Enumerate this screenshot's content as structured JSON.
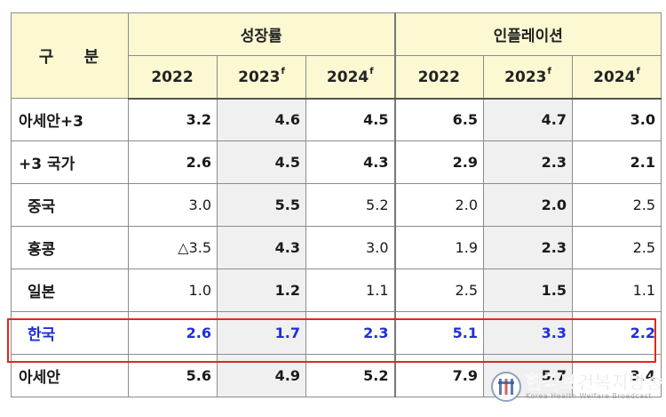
{
  "table": {
    "corner_label": "구 분",
    "groups": [
      "성장률",
      "인플레이션"
    ],
    "years": [
      {
        "year": "2022",
        "mark": ""
      },
      {
        "year": "2023",
        "mark": "f"
      },
      {
        "year": "2024",
        "mark": "f"
      },
      {
        "year": "2022",
        "mark": ""
      },
      {
        "year": "2023",
        "mark": "f"
      },
      {
        "year": "2024",
        "mark": "f"
      }
    ],
    "rows": [
      {
        "label": "아세안+3",
        "values": [
          "3.2",
          "4.6",
          "4.5",
          "6.5",
          "4.7",
          "3.0"
        ]
      },
      {
        "label": "+3 국가",
        "values": [
          "2.6",
          "4.5",
          "4.3",
          "2.9",
          "2.3",
          "2.1"
        ]
      },
      {
        "label": "중국",
        "values": [
          "3.0",
          "5.5",
          "5.2",
          "2.0",
          "2.0",
          "2.5"
        ]
      },
      {
        "label": "홍콩",
        "values": [
          "△3.5",
          "4.3",
          "3.0",
          "1.9",
          "2.3",
          "2.5"
        ]
      },
      {
        "label": "일본",
        "values": [
          "1.0",
          "1.2",
          "1.1",
          "2.5",
          "1.5",
          "1.1"
        ]
      },
      {
        "label": "한국",
        "values": [
          "2.6",
          "1.7",
          "2.3",
          "5.1",
          "3.3",
          "2.2"
        ]
      },
      {
        "label": "아세안",
        "values": [
          "5.6",
          "4.9",
          "5.2",
          "7.9",
          "5.7",
          "3.4"
        ]
      }
    ]
  },
  "watermark": {
    "name": "한국보건복지방송",
    "subtitle": "Korea Health Welfare Broadcast"
  },
  "colors": {
    "header_bg": "#fbf8d2",
    "shade_bg": "#f0f0f0",
    "highlight_border": "#e0281f",
    "highlight_text": "#1f2fd6"
  }
}
